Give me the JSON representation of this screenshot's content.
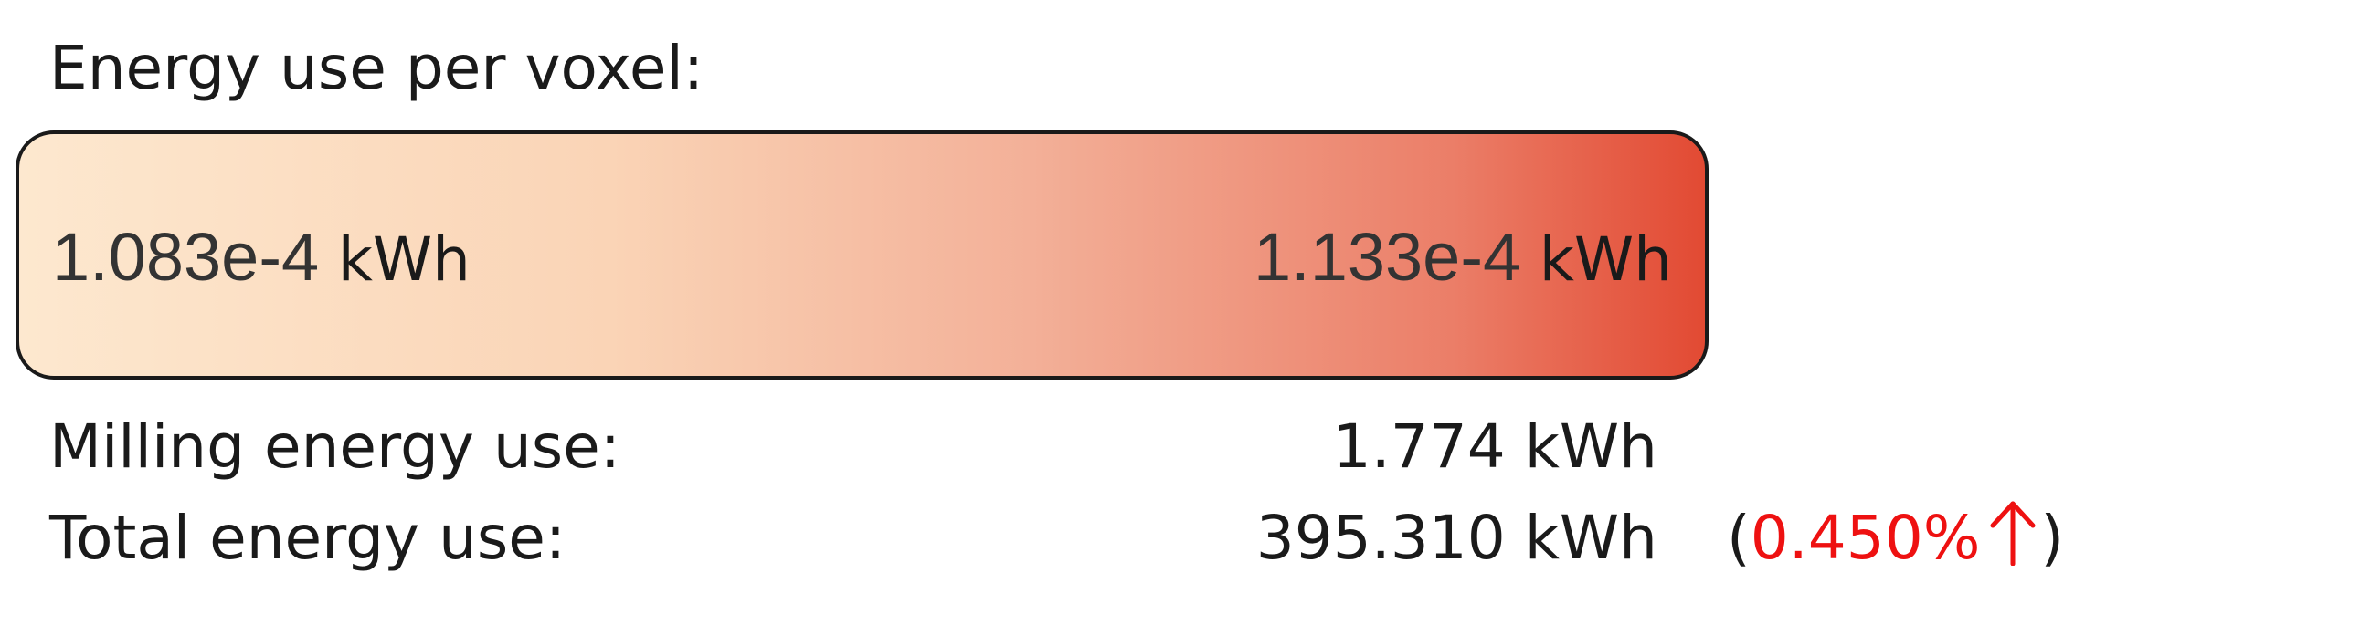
{
  "panel": {
    "title": "Energy use per voxel:",
    "bar": {
      "min_value": "1.083e-4",
      "max_value": "1.133e-4",
      "unit": "kWh",
      "color_start": "#fde8cf",
      "color_end": "#e24a33"
    },
    "rows": [
      {
        "label": "Milling energy use:",
        "value": "1.774 kWh"
      },
      {
        "label": "Total energy use:",
        "value": "395.310 kWh"
      }
    ],
    "delta": {
      "open": "(",
      "value": "0.450%",
      "close": ")",
      "direction_icon": "arrow-up-icon",
      "color": "#ee1111"
    }
  }
}
